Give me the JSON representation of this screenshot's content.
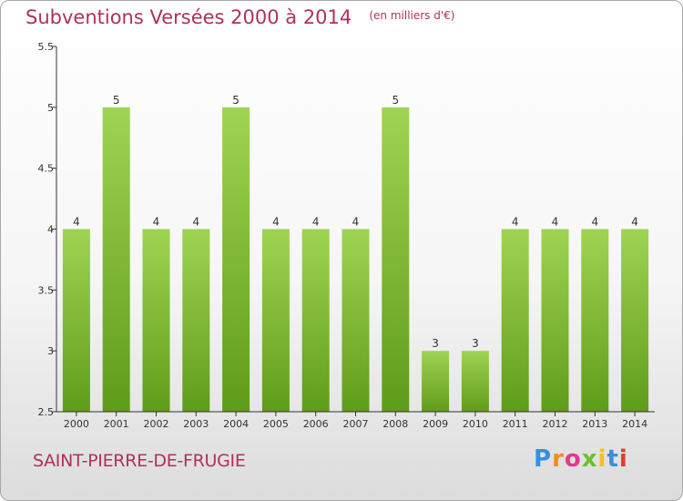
{
  "header": {
    "title": "Subventions Versées 2000 à 2014",
    "unit": "(en milliers d'€)"
  },
  "footer": {
    "commune": "SAINT-PIERRE-DE-FRUGIE",
    "logo": "Proxiti"
  },
  "colors": {
    "title": "#b03060",
    "bar_light": "#9fd452",
    "bar_dark": "#5f9c1a",
    "axis": "#333333"
  },
  "chart_data": {
    "type": "bar",
    "title": "Subventions Versées 2000 à 2014",
    "subtitle": "(en milliers d'€)",
    "xlabel": "",
    "ylabel": "",
    "categories": [
      "2000",
      "2001",
      "2002",
      "2003",
      "2004",
      "2005",
      "2006",
      "2007",
      "2008",
      "2009",
      "2010",
      "2011",
      "2012",
      "2013",
      "2014"
    ],
    "values": [
      4,
      5,
      4,
      4,
      5,
      4,
      4,
      4,
      5,
      3,
      3,
      4,
      4,
      4,
      4
    ],
    "data_labels": [
      "4",
      "5",
      "4",
      "4",
      "5",
      "4",
      "4",
      "4",
      "5",
      "3",
      "3",
      "4",
      "4",
      "4",
      "4"
    ],
    "ylim": [
      2.5,
      5.5
    ],
    "yticks": [
      2.5,
      3,
      3.5,
      4,
      4.5,
      5,
      5.5
    ],
    "ytick_labels": [
      "2.5",
      "3",
      "3.5",
      "4",
      "4.5",
      "5",
      "5.5"
    ],
    "grid": false,
    "legend": "none"
  }
}
